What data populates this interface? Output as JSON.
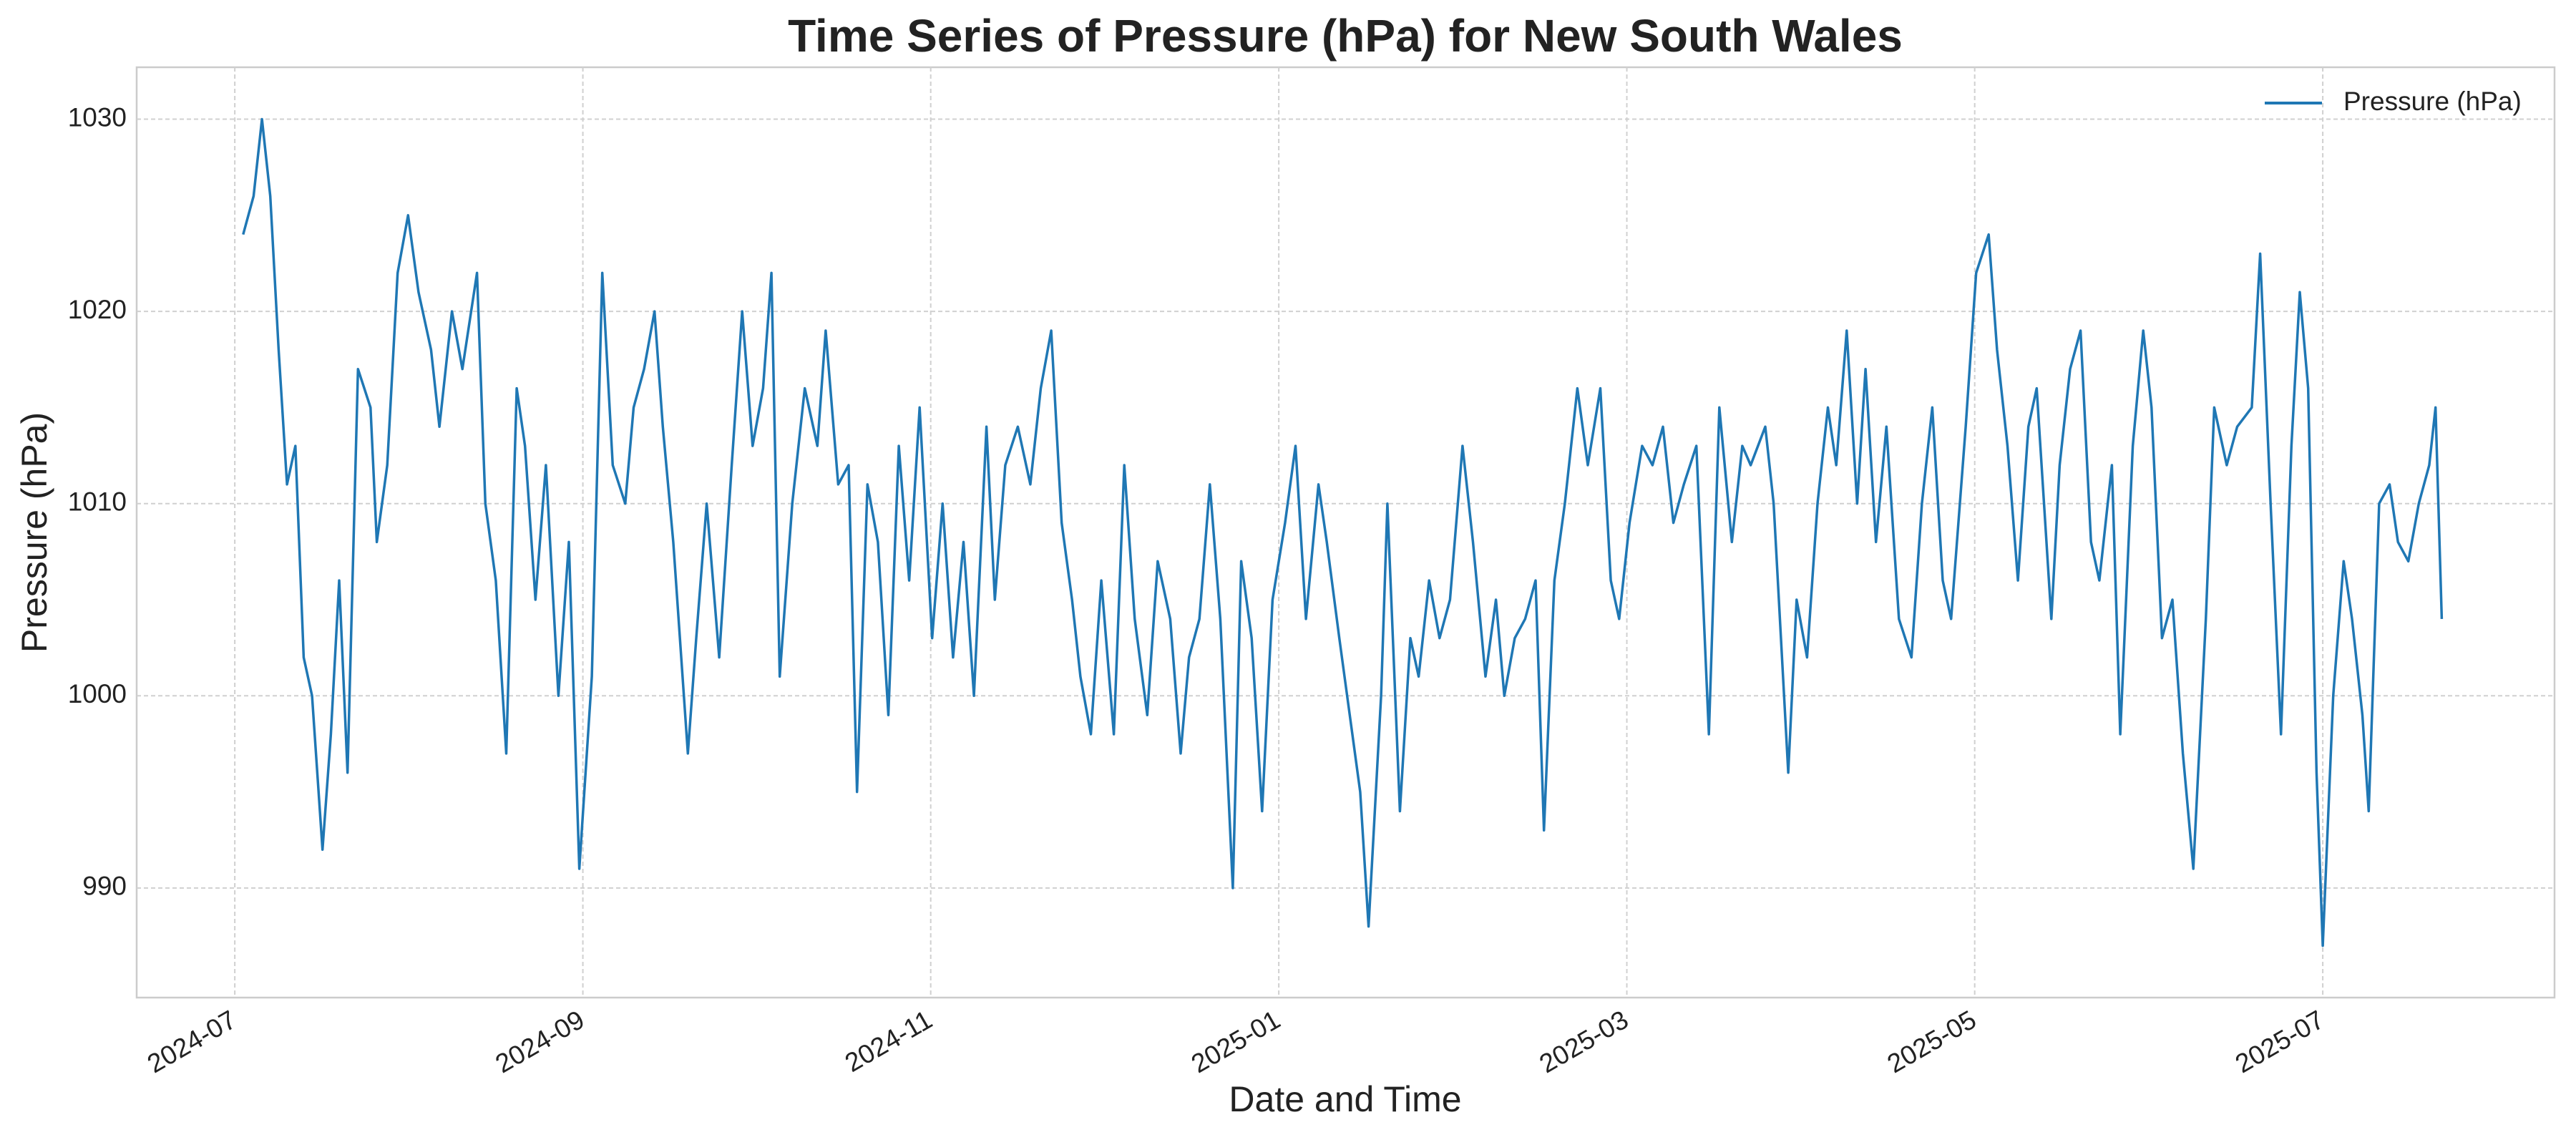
{
  "chart_data": {
    "type": "line",
    "title": "Time Series of Pressure (hPa) for New South Wales",
    "xlabel": "Date and Time",
    "ylabel": "Pressure (hPa)",
    "x": [
      2024.504,
      2024.509,
      2024.513,
      2024.517,
      2024.521,
      2024.525,
      2024.529,
      2024.533,
      2024.537,
      2024.542,
      2024.546,
      2024.55,
      2024.554,
      2024.559,
      2024.565,
      2024.568,
      2024.573,
      2024.578,
      2024.583,
      2024.588,
      2024.594,
      2024.598,
      2024.604,
      2024.609,
      2024.616,
      2024.62,
      2024.625,
      2024.63,
      2024.635,
      2024.639,
      2024.644,
      2024.649,
      2024.655,
      2024.66,
      2024.665,
      2024.671,
      2024.676,
      2024.681,
      2024.687,
      2024.691,
      2024.696,
      2024.701,
      2024.705,
      2024.71,
      2024.717,
      2024.721,
      2024.726,
      2024.732,
      2024.738,
      2024.743,
      2024.748,
      2024.753,
      2024.757,
      2024.761,
      2024.767,
      2024.773,
      2024.779,
      2024.783,
      2024.789,
      2024.794,
      2024.798,
      2024.803,
      2024.808,
      2024.813,
      2024.818,
      2024.823,
      2024.828,
      2024.834,
      2024.839,
      2024.844,
      2024.849,
      2024.854,
      2024.86,
      2024.864,
      2024.869,
      2024.875,
      2024.881,
      2024.886,
      2024.891,
      2024.896,
      2024.901,
      2024.905,
      2024.91,
      2024.915,
      2024.921,
      2024.926,
      2024.931,
      2024.937,
      2024.942,
      2024.948,
      2024.953,
      2024.957,
      2024.962,
      2024.967,
      2024.972,
      2024.978,
      2024.982,
      2024.987,
      2024.992,
      2024.997,
      2025.003,
      2025.008,
      2025.013,
      2025.019,
      2025.023,
      2025.029,
      2025.034,
      2025.039,
      2025.043,
      2025.049,
      2025.052,
      2025.058,
      2025.063,
      2025.067,
      2025.072,
      2025.077,
      2025.082,
      2025.088,
      2025.093,
      2025.099,
      2025.104,
      2025.108,
      2025.113,
      2025.118,
      2025.123,
      2025.127,
      2025.132,
      2025.137,
      2025.143,
      2025.148,
      2025.154,
      2025.159,
      2025.163,
      2025.168,
      2025.174,
      2025.179,
      2025.184,
      2025.189,
      2025.194,
      2025.2,
      2025.206,
      2025.211,
      2025.217,
      2025.222,
      2025.226,
      2025.233,
      2025.237,
      2025.244,
      2025.248,
      2025.253,
      2025.258,
      2025.263,
      2025.267,
      2025.272,
      2025.277,
      2025.281,
      2025.286,
      2025.291,
      2025.297,
      2025.303,
      2025.308,
      2025.313,
      2025.318,
      2025.322,
      2025.329,
      2025.334,
      2025.34,
      2025.344,
      2025.349,
      2025.354,
      2025.359,
      2025.363,
      2025.37,
      2025.374,
      2025.379,
      2025.384,
      2025.389,
      2025.393,
      2025.399,
      2025.403,
      2025.409,
      2025.414,
      2025.418,
      2025.423,
      2025.428,
      2025.433,
      2025.438,
      2025.444,
      2025.448,
      2025.454,
      2025.459,
      2025.466,
      2025.47,
      2025.475,
      2025.48,
      2025.485,
      2025.489,
      2025.493,
      2025.497,
      2025.5,
      2025.505,
      2025.51,
      2025.514,
      2025.519,
      2025.522,
      2025.527,
      2025.532,
      2025.536,
      2025.541,
      2025.546,
      2025.551,
      2025.554,
      2025.557
    ],
    "series": [
      {
        "name": "Pressure (hPa)",
        "color": "#1f77b4",
        "values": [
          1024,
          1026,
          1030,
          1026,
          1018,
          1011,
          1013,
          1002,
          1000,
          992,
          998,
          1006,
          996,
          1017,
          1015,
          1008,
          1012,
          1022,
          1025,
          1021,
          1018,
          1014,
          1020,
          1017,
          1022,
          1010,
          1006,
          997,
          1016,
          1013,
          1005,
          1012,
          1000,
          1008,
          991,
          1001,
          1022,
          1012,
          1010,
          1015,
          1017,
          1020,
          1014,
          1008,
          997,
          1003,
          1010,
          1002,
          1012,
          1020,
          1013,
          1016,
          1022,
          1001,
          1010,
          1016,
          1013,
          1019,
          1011,
          1012,
          995,
          1011,
          1008,
          999,
          1013,
          1006,
          1015,
          1003,
          1010,
          1002,
          1008,
          1000,
          1014,
          1005,
          1012,
          1014,
          1011,
          1016,
          1019,
          1009,
          1005,
          1001,
          998,
          1006,
          998,
          1012,
          1004,
          999,
          1007,
          1004,
          997,
          1002,
          1004,
          1011,
          1004,
          990,
          1007,
          1003,
          994,
          1005,
          1009,
          1013,
          1004,
          1011,
          1008,
          1003,
          999,
          995,
          988,
          1000,
          1010,
          994,
          1003,
          1001,
          1006,
          1003,
          1005,
          1013,
          1008,
          1001,
          1005,
          1000,
          1003,
          1004,
          1006,
          993,
          1006,
          1010,
          1016,
          1012,
          1016,
          1006,
          1004,
          1009,
          1013,
          1012,
          1014,
          1009,
          1011,
          1013,
          998,
          1015,
          1008,
          1013,
          1012,
          1014,
          1010,
          996,
          1005,
          1002,
          1010,
          1015,
          1012,
          1019,
          1010,
          1017,
          1008,
          1014,
          1004,
          1002,
          1010,
          1015,
          1006,
          1004,
          1014,
          1022,
          1024,
          1018,
          1013,
          1006,
          1014,
          1016,
          1004,
          1012,
          1017,
          1019,
          1008,
          1006,
          1012,
          998,
          1013,
          1019,
          1015,
          1003,
          1005,
          997,
          991,
          1004,
          1015,
          1012,
          1014,
          1015,
          1023,
          1010,
          998,
          1013,
          1021,
          1016,
          996,
          987,
          1000,
          1007,
          1004,
          999,
          994,
          1010,
          1011,
          1008,
          1007,
          1010,
          1012,
          1015,
          1004
        ]
      }
    ],
    "xlim": [
      2024.453,
      2025.611
    ],
    "ylim": [
      984.3,
      1032.7
    ],
    "xticks": [
      {
        "value": 2024.5,
        "label": "2024-07"
      },
      {
        "value": 2024.6667,
        "label": "2024-09"
      },
      {
        "value": 2024.8333,
        "label": "2024-11"
      },
      {
        "value": 2025.0,
        "label": "2025-01"
      },
      {
        "value": 2025.1667,
        "label": "2025-03"
      },
      {
        "value": 2025.3333,
        "label": "2025-05"
      },
      {
        "value": 2025.5,
        "label": "2025-07"
      }
    ],
    "yticks": [
      990,
      1000,
      1010,
      1020,
      1030
    ],
    "grid": true,
    "legend": "upper right"
  }
}
